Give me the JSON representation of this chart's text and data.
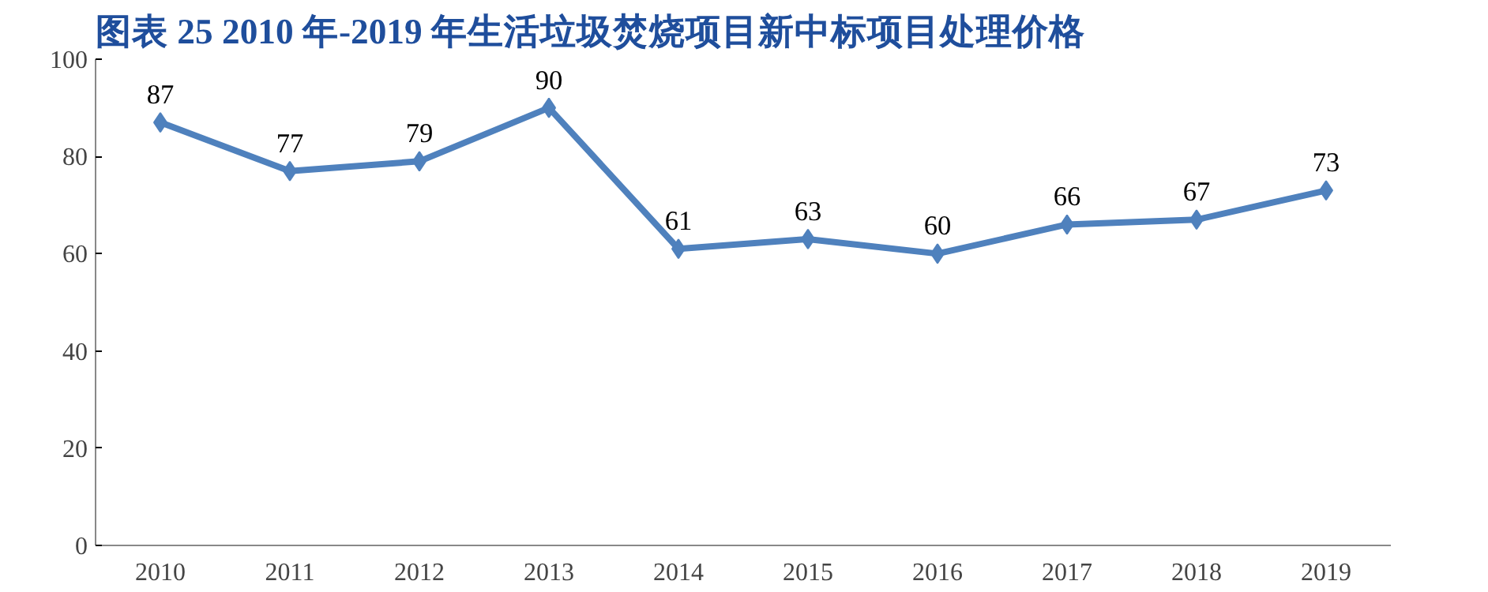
{
  "chart_data": {
    "type": "line",
    "title": "图表 25   2010 年-2019 年生活垃圾焚烧项目新中标项目处理价格",
    "categories": [
      "2010",
      "2011",
      "2012",
      "2013",
      "2014",
      "2015",
      "2016",
      "2017",
      "2018",
      "2019"
    ],
    "series": [
      {
        "color": "#4f81bd",
        "values": [
          87,
          77,
          79,
          90,
          61,
          63,
          60,
          66,
          67,
          73
        ]
      }
    ],
    "ylim": [
      0,
      100
    ],
    "yticks": [
      0,
      20,
      40,
      60,
      80,
      100
    ],
    "grid": false,
    "marker": "diamond",
    "line_style": "solid",
    "data_labels": true
  }
}
